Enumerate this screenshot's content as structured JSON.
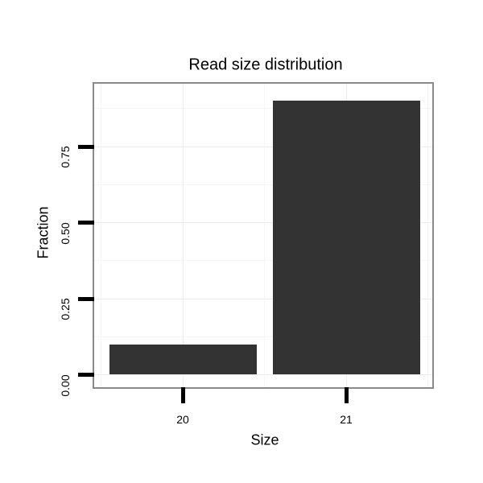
{
  "chart_data": {
    "type": "bar",
    "title": "Read size distribution",
    "xlabel": "Size",
    "ylabel": "Fraction",
    "categories": [
      "20",
      "21"
    ],
    "values": [
      0.1,
      0.9
    ],
    "y_ticks": [
      {
        "label": "0.00",
        "value": 0.0
      },
      {
        "label": "0.25",
        "value": 0.25
      },
      {
        "label": "0.50",
        "value": 0.5
      },
      {
        "label": "0.75",
        "value": 0.75
      }
    ],
    "y_minor_values": [
      0.125,
      0.375,
      0.625,
      0.875
    ],
    "ylim": [
      -0.045,
      0.956
    ],
    "grid": "major and minor, very light gray, on white panel",
    "legend_position": "none",
    "colors": {
      "bar_fill": "#333333",
      "panel_border": "#8a8a8a",
      "grid_major": "#ececec",
      "grid_minor": "#f5f5f5",
      "text": "#000000",
      "tick": "#000000",
      "background": "#ffffff"
    }
  }
}
